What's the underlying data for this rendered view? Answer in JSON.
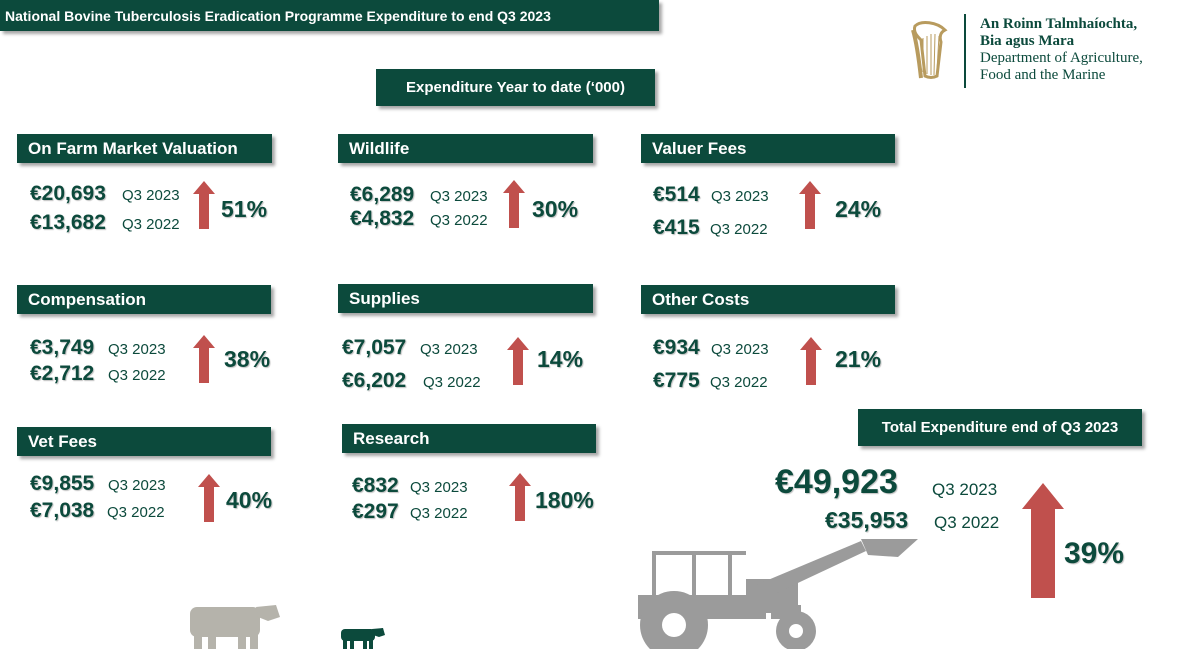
{
  "header": {
    "title": "National Bovine Tuberculosis  Eradication Programme Expenditure to end Q3 2023"
  },
  "logo": {
    "line1": "An Roinn Talmhaíochta,",
    "line2": "Bia agus Mara",
    "line3": "Department of Agriculture,",
    "line4": "Food and the Marine"
  },
  "subtitle": "Expenditure Year to date (‘000)",
  "categories": [
    {
      "name": "On Farm Market Valuation",
      "amount_2023": "€20,693",
      "label_2023": "Q3 2023",
      "amount_2022": "€13,682",
      "label_2022": "Q3 2022",
      "change": "51%"
    },
    {
      "name": "Wildlife",
      "amount_2023": "€6,289",
      "label_2023": "Q3 2023",
      "amount_2022": "€4,832",
      "label_2022": "Q3 2022",
      "change": "30%"
    },
    {
      "name": "Valuer Fees",
      "amount_2023": "€514",
      "label_2023": "Q3 2023",
      "amount_2022": "€415",
      "label_2022": "Q3 2022",
      "change": "24%"
    },
    {
      "name": "Compensation",
      "amount_2023": "€3,749",
      "label_2023": "Q3 2023",
      "amount_2022": "€2,712",
      "label_2022": "Q3 2022",
      "change": "38%"
    },
    {
      "name": "Supplies",
      "amount_2023": "€7,057",
      "label_2023": "Q3 2023",
      "amount_2022": "€6,202",
      "label_2022": "Q3 2022",
      "change": "14%"
    },
    {
      "name": "Other Costs",
      "amount_2023": "€934",
      "label_2023": "Q3 2023",
      "amount_2022": "€775",
      "label_2022": "Q3 2022",
      "change": "21%"
    },
    {
      "name": "Vet Fees",
      "amount_2023": "€9,855",
      "label_2023": "Q3 2023",
      "amount_2022": "€7,038",
      "label_2022": "Q3 2022",
      "change": "40%"
    },
    {
      "name": "Research",
      "amount_2023": "€832",
      "label_2023": "Q3 2023",
      "amount_2022": "€297",
      "label_2022": "Q3 2022",
      "change": "180%"
    }
  ],
  "total": {
    "name": "Total Expenditure end of Q3 2023",
    "amount_2023": "€49,923",
    "label_2023": "Q3 2023",
    "amount_2022": "€35,953",
    "label_2022": "Q3 2022",
    "change": "39%"
  },
  "icons": [
    "harp-icon",
    "cow-icon",
    "tractor-icon",
    "arrow-up-icon"
  ],
  "colors": {
    "box_green": "#0c4a3c",
    "arrow_red": "#c0504d",
    "silhouette_grey": "#9b9b9b"
  }
}
